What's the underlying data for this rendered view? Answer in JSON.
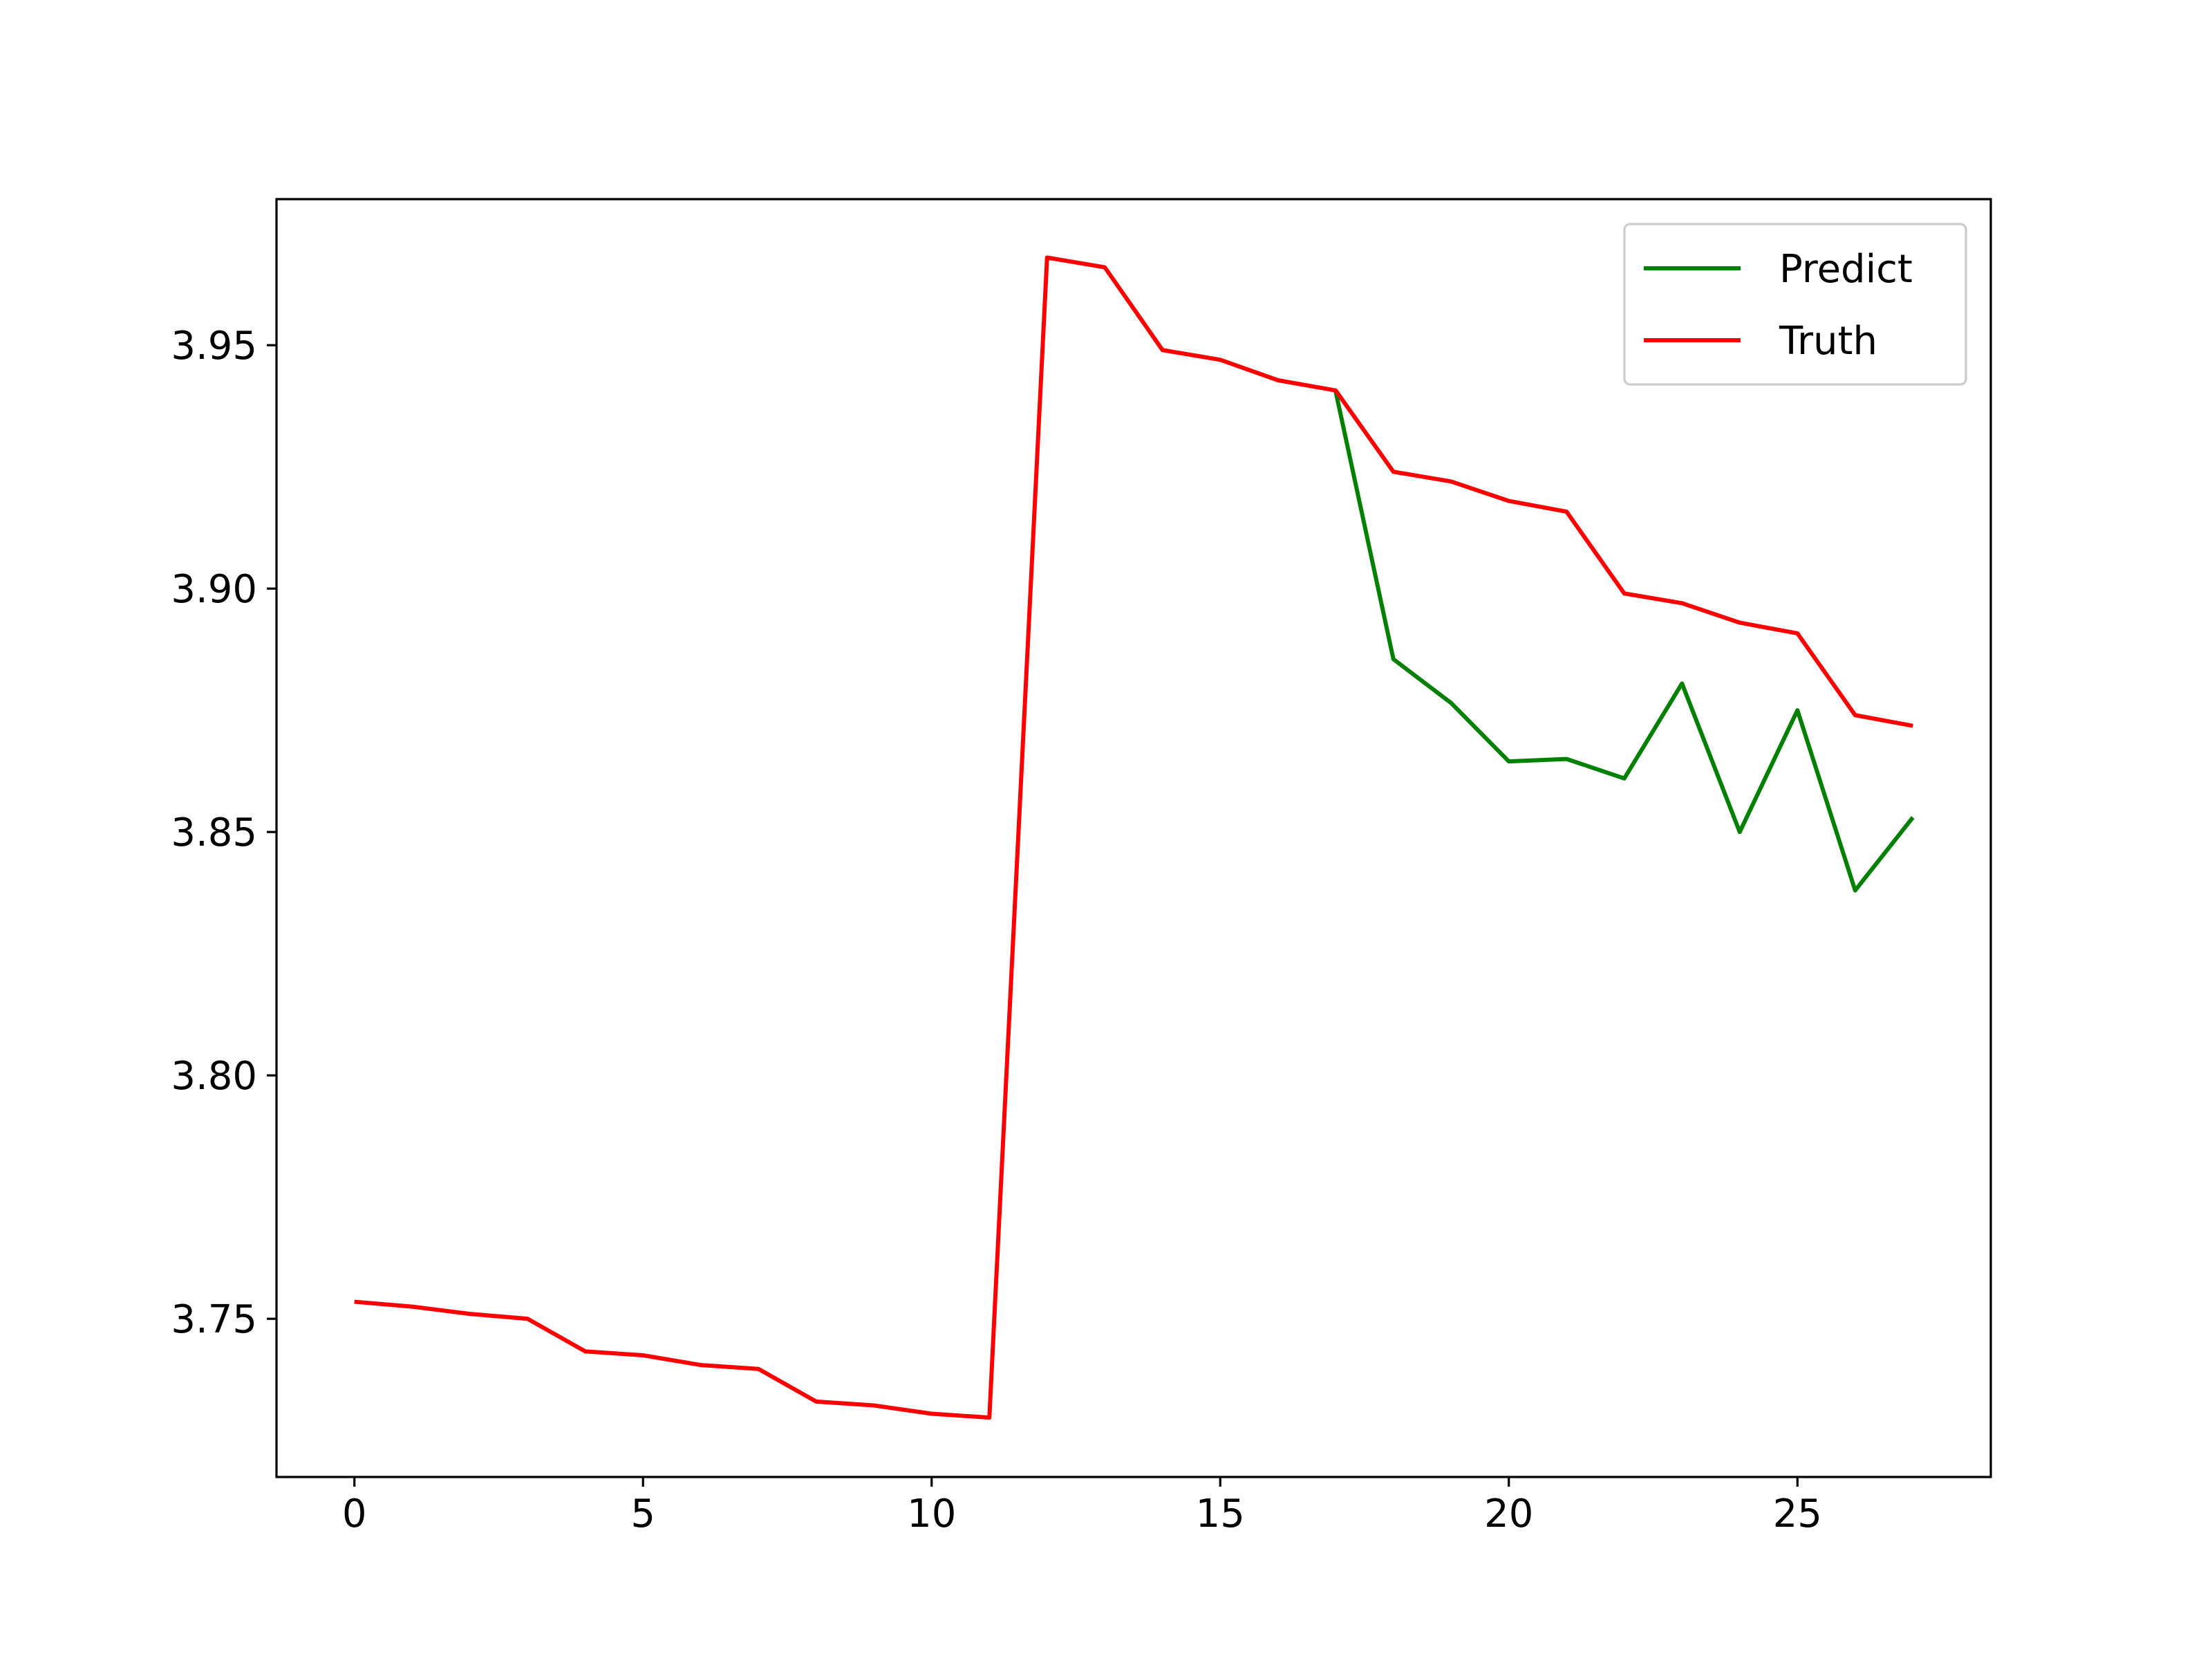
{
  "chart_data": {
    "type": "line",
    "title": "",
    "xlabel": "",
    "ylabel": "",
    "xlim": [
      -1.35,
      28.35
    ],
    "ylim": [
      3.7175,
      3.98
    ],
    "x_ticks": [
      0,
      5,
      10,
      15,
      20,
      25
    ],
    "x_tick_labels": [
      "0",
      "5",
      "10",
      "15",
      "20",
      "25"
    ],
    "y_ticks": [
      3.75,
      3.8,
      3.85,
      3.9,
      3.95
    ],
    "y_tick_labels": [
      "3.75",
      "3.80",
      "3.85",
      "3.90",
      "3.95"
    ],
    "grid": false,
    "legend_position": "upper right",
    "series": [
      {
        "name": "Predict",
        "color": "#008000",
        "x": [
          17,
          18,
          19,
          20,
          21,
          22,
          23,
          24,
          25,
          26,
          27
        ],
        "values": [
          3.9405,
          3.8855,
          3.8765,
          3.8645,
          3.865,
          3.861,
          3.8805,
          3.85,
          3.875,
          3.838,
          3.853
        ]
      },
      {
        "name": "Truth",
        "color": "#ff0000",
        "x": [
          0,
          1,
          2,
          3,
          4,
          5,
          6,
          7,
          8,
          9,
          10,
          11,
          12,
          13,
          14,
          15,
          16,
          17,
          18,
          19,
          20,
          21,
          22,
          23,
          24,
          25,
          26,
          27
        ],
        "values": [
          3.7535,
          3.7525,
          3.751,
          3.75,
          3.7433,
          3.7425,
          3.7405,
          3.7397,
          3.733,
          3.7322,
          3.7305,
          3.7297,
          3.968,
          3.966,
          3.949,
          3.947,
          3.9428,
          3.9407,
          3.924,
          3.922,
          3.918,
          3.9158,
          3.899,
          3.897,
          3.893,
          3.8908,
          3.874,
          3.8718
        ]
      }
    ]
  }
}
